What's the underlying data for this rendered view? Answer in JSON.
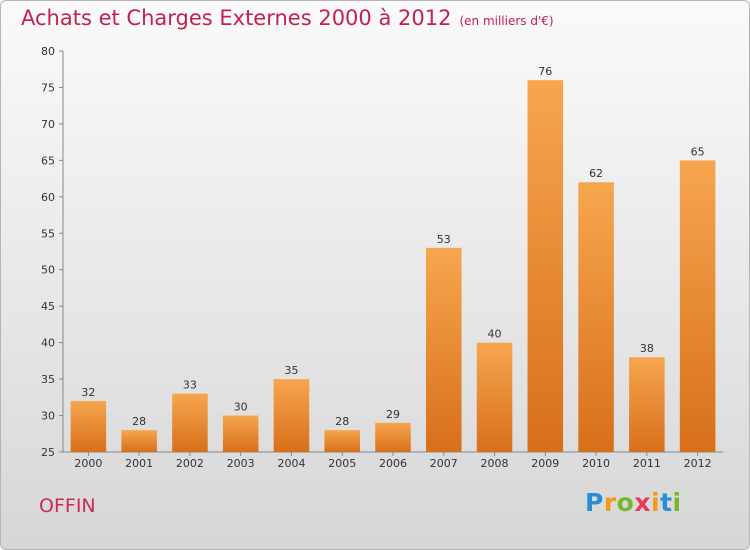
{
  "chart_data": {
    "type": "bar",
    "title": "Achats et Charges Externes 2000 à 2012",
    "subtitle": "(en milliers d'€)",
    "categories": [
      "2000",
      "2001",
      "2002",
      "2003",
      "2004",
      "2005",
      "2006",
      "2007",
      "2008",
      "2009",
      "2010",
      "2011",
      "2012"
    ],
    "values": [
      32,
      28,
      33,
      30,
      35,
      28,
      29,
      53,
      40,
      76,
      62,
      38,
      65
    ],
    "ylim": [
      25,
      80
    ],
    "yticks": [
      25,
      30,
      35,
      40,
      45,
      50,
      55,
      60,
      65,
      70,
      75,
      80
    ],
    "xlabel": "",
    "ylabel": "",
    "grid": false,
    "bar_color_top": "#f6a64f",
    "bar_color_bottom": "#d86f1a"
  },
  "footer": {
    "commune": "OFFIN",
    "logo_letters": [
      "P",
      "r",
      "o",
      "x",
      "i",
      "t",
      "i"
    ],
    "logo_colors": [
      "#2a8ed6",
      "#f29a1c",
      "#79b72a",
      "#e43d56",
      "#f29a1c",
      "#2a8ed6",
      "#79b72a"
    ]
  }
}
